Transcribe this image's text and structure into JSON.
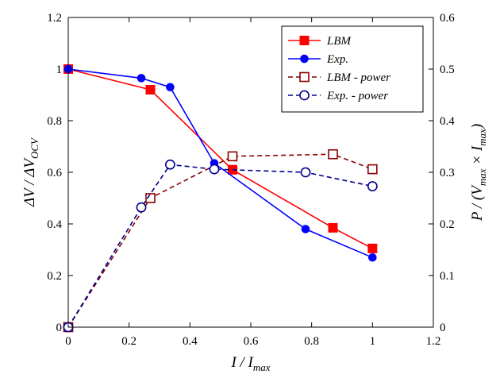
{
  "chart_data": {
    "type": "line",
    "x_axis": {
      "label_main": "I / I",
      "label_sub": "max",
      "range": [
        0,
        1.2
      ],
      "ticks": [
        "0",
        "0.2",
        "0.4",
        "0.6",
        "0.8",
        "1",
        "1.2"
      ]
    },
    "y_left": {
      "label_main": "ΔV / ΔV",
      "label_sub": "OCV",
      "range": [
        0,
        1.2
      ],
      "ticks": [
        "0",
        "0.2",
        "0.4",
        "0.6",
        "0.8",
        "1",
        "1.2"
      ]
    },
    "y_right": {
      "label_main": "P / (V",
      "label_sub1": "max",
      "label_mid": " × I",
      "label_sub2": "max",
      "label_end": ")",
      "range": [
        0,
        0.6
      ],
      "ticks": [
        "0",
        "0.1",
        "0.2",
        "0.3",
        "0.4",
        "0.5",
        "0.6"
      ]
    },
    "grid": false,
    "legend_position": "top-right",
    "series": [
      {
        "name": "LBM",
        "axis": "left",
        "color": "#ff0000",
        "line_style": "solid",
        "marker": "square-filled",
        "x": [
          0,
          0.27,
          0.54,
          0.87,
          1.0
        ],
        "y": [
          1.0,
          0.92,
          0.61,
          0.385,
          0.305
        ]
      },
      {
        "name": "Exp.",
        "axis": "left",
        "color": "#0000ff",
        "line_style": "solid",
        "marker": "circle-filled",
        "x": [
          0,
          0.24,
          0.335,
          0.48,
          0.78,
          1.0
        ],
        "y": [
          1.0,
          0.965,
          0.93,
          0.635,
          0.38,
          0.27
        ]
      },
      {
        "name": "LBM - power",
        "axis": "right",
        "color": "#8b0000",
        "line_style": "dashed",
        "marker": "square-open",
        "x": [
          0,
          0.27,
          0.54,
          0.87,
          1.0
        ],
        "y": [
          0,
          0.25,
          0.331,
          0.335,
          0.306
        ]
      },
      {
        "name": "Exp. - power",
        "axis": "right",
        "color": "#00008b",
        "line_style": "dashed",
        "marker": "circle-open",
        "x": [
          0,
          0.24,
          0.335,
          0.48,
          0.78,
          1.0
        ],
        "y": [
          0,
          0.232,
          0.315,
          0.306,
          0.3,
          0.273
        ]
      }
    ]
  }
}
